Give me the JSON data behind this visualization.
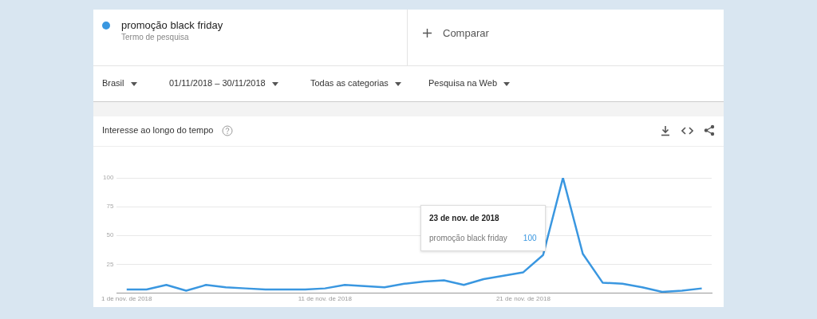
{
  "chart_data": {
    "type": "line",
    "title": "Interesse ao longo do tempo",
    "categories": [
      "1 de nov. de 2018",
      null,
      null,
      null,
      null,
      null,
      null,
      null,
      null,
      null,
      "11 de nov. de 2018",
      null,
      null,
      null,
      null,
      null,
      null,
      null,
      null,
      null,
      "21 de nov. de 2018",
      null,
      null,
      null,
      null,
      null,
      null,
      null,
      null,
      null
    ],
    "series": [
      {
        "name": "promoção black friday",
        "color": "#3a97e0",
        "values": [
          3,
          3,
          7,
          2,
          7,
          5,
          4,
          3,
          3,
          3,
          4,
          7,
          6,
          5,
          8,
          10,
          11,
          7,
          12,
          15,
          18,
          33,
          100,
          34,
          9,
          8,
          5,
          1,
          2,
          4
        ]
      }
    ],
    "ylim": [
      0,
      100
    ],
    "yticks": [
      {
        "value": 0,
        "label": null
      },
      25,
      50,
      75,
      100
    ],
    "grid": "y",
    "legend": "top left",
    "marker": "none",
    "line_style": "solid",
    "annotations": [
      "Termo de pesquisa",
      "Comparar",
      "Brasil",
      "01/11/2018 – 30/11/2018",
      "Todas as categorias",
      "Pesquisa na Web",
      "23 de nov. de 2018",
      "100"
    ]
  }
}
